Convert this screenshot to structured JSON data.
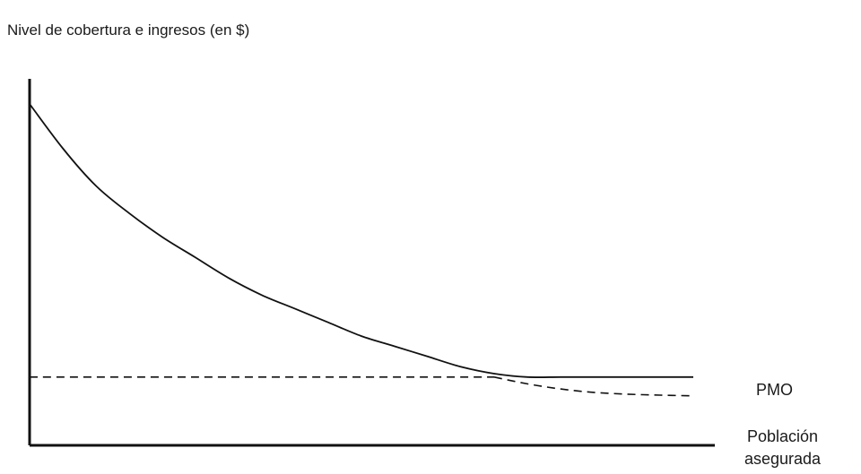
{
  "chart_data": {
    "type": "line",
    "ylabel": "Nivel de cobertura e ingresos (en $)",
    "xlabel_lines": [
      "Población",
      "asegurada"
    ],
    "series_label": "PMO",
    "x_ticks": [],
    "y_ticks": [],
    "grid": false,
    "series": [
      {
        "style": "solid",
        "points": [
          [
            0,
            100
          ],
          [
            5,
            87
          ],
          [
            10,
            76
          ],
          [
            15,
            68
          ],
          [
            20,
            61
          ],
          [
            25,
            55
          ],
          [
            30,
            49
          ],
          [
            35,
            44
          ],
          [
            40,
            40
          ],
          [
            45,
            36
          ],
          [
            50,
            32
          ],
          [
            55,
            29
          ],
          [
            60,
            26
          ],
          [
            65,
            23
          ],
          [
            70,
            21
          ],
          [
            75,
            20
          ],
          [
            80,
            20
          ],
          [
            85,
            20
          ],
          [
            90,
            20
          ],
          [
            95,
            20
          ],
          [
            100,
            20
          ]
        ]
      },
      {
        "style": "dashed",
        "points": [
          [
            0,
            20
          ],
          [
            70,
            20
          ]
        ]
      },
      {
        "style": "dashed",
        "points": [
          [
            70,
            20
          ],
          [
            75,
            18
          ],
          [
            80,
            16.5
          ],
          [
            85,
            15.5
          ],
          [
            90,
            15
          ],
          [
            95,
            14.7
          ],
          [
            100,
            14.5
          ]
        ]
      }
    ],
    "xlim": [
      0,
      100
    ],
    "ylim": [
      0,
      100
    ]
  }
}
